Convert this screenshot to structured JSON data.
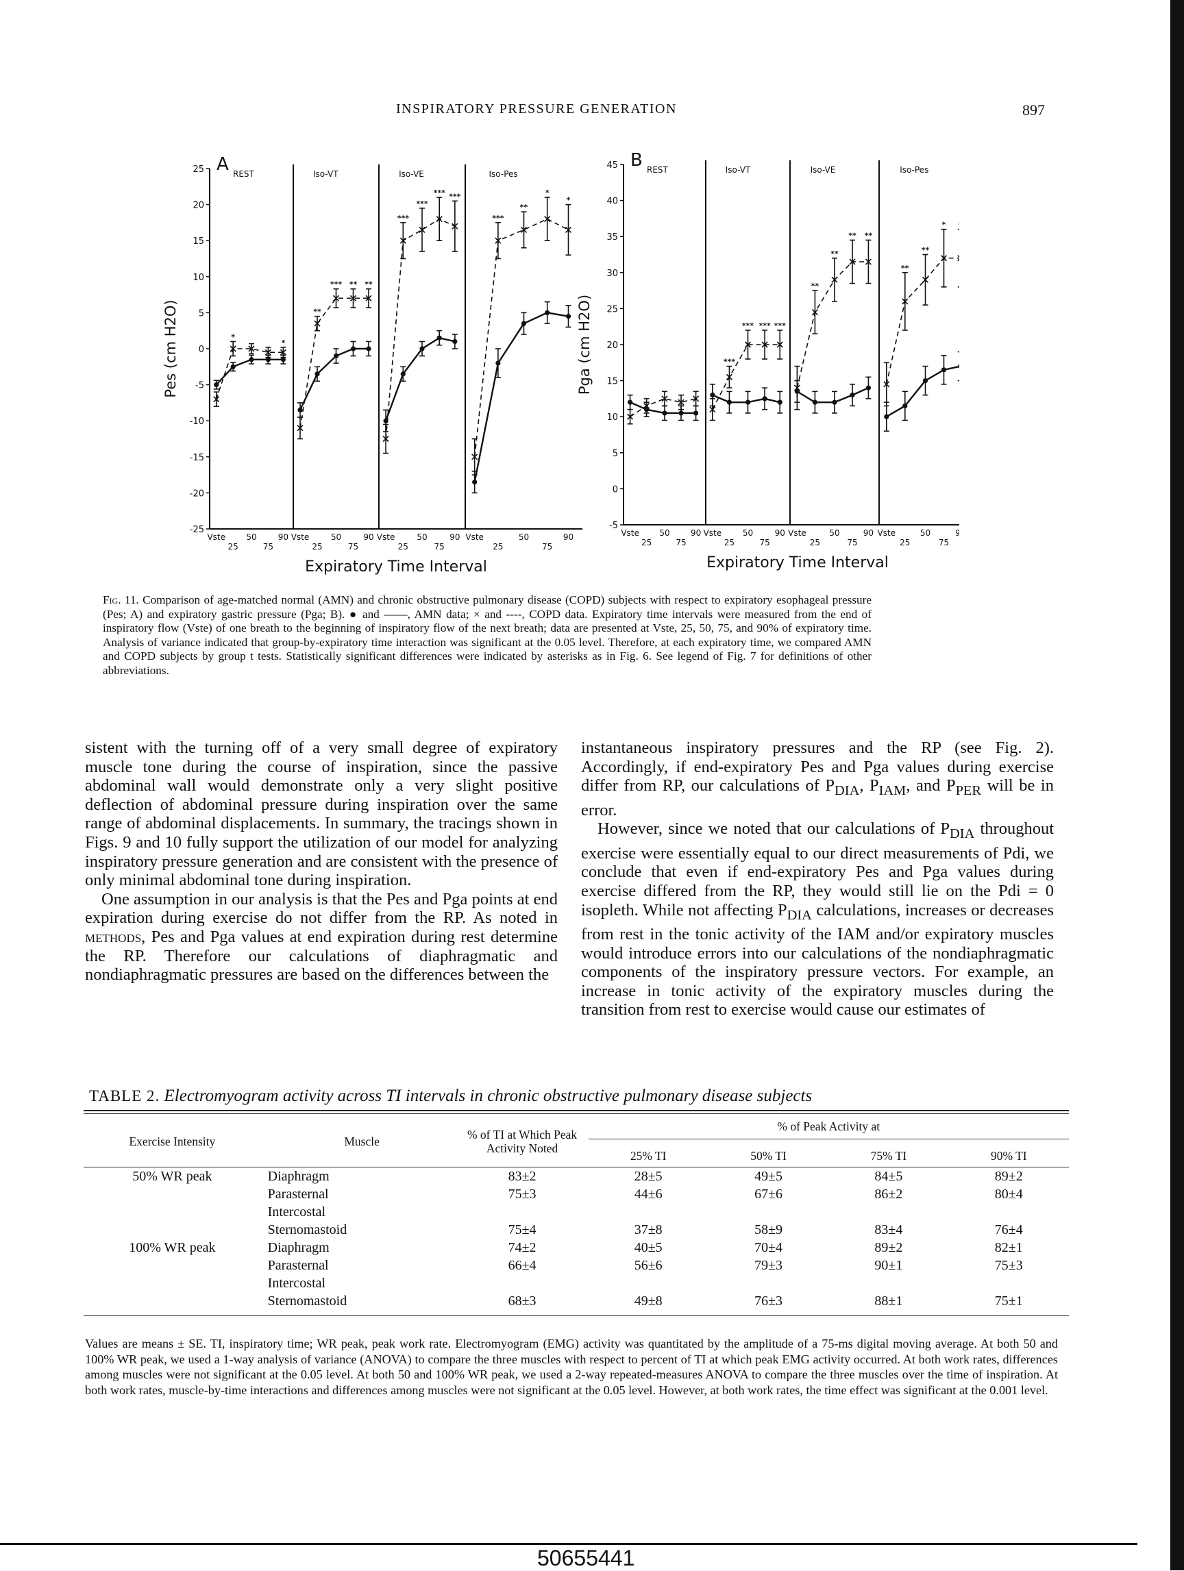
{
  "header": {
    "running_title": "INSPIRATORY PRESSURE GENERATION",
    "page_number": "897"
  },
  "figure": {
    "panels": [
      {
        "letter": "A",
        "ylabel": "Pes (cm H2O)",
        "yticks": [
          25,
          20,
          15,
          10,
          5,
          0,
          -5,
          -10,
          -15,
          -20,
          -25
        ],
        "ylim": [
          -25,
          25
        ],
        "xlabel": "Expiratory Time Interval",
        "conditions": [
          "REST",
          "Iso-VT",
          "Iso-VE",
          "Iso-Pes"
        ],
        "tick_top": [
          "Vste",
          "50",
          "90"
        ],
        "tick_bottom": [
          "25",
          "75"
        ]
      },
      {
        "letter": "B",
        "ylabel": "Pga (cm H2O)",
        "yticks": [
          45,
          40,
          35,
          30,
          25,
          20,
          15,
          10,
          5,
          0,
          -5
        ],
        "ylim": [
          -5,
          45
        ],
        "xlabel": "Expiratory Time Interval",
        "conditions": [
          "REST",
          "Iso-VT",
          "Iso-VE",
          "Iso-Pes"
        ],
        "tick_top": [
          "Vste",
          "50",
          "90"
        ],
        "tick_bottom": [
          "25",
          "75"
        ]
      }
    ]
  },
  "chart_data": [
    {
      "type": "line",
      "panel": "A",
      "ylabel": "Pes (cm H2O)",
      "xlabel": "Expiratory Time Interval",
      "ylim": [
        -25,
        25
      ],
      "groups": [
        "REST",
        "Iso-VT",
        "Iso-VE",
        "Iso-Pes"
      ],
      "x": [
        "Vste",
        "25",
        "50",
        "75",
        "90"
      ],
      "series": [
        {
          "name": "AMN",
          "style": "solid",
          "marker": "dot",
          "values": [
            [
              -5,
              -2.5,
              -1.5,
              -1.5,
              -1.5
            ],
            [
              -8.5,
              -3.5,
              -1,
              0,
              0
            ],
            [
              -10,
              -3.5,
              0,
              1.5,
              1
            ],
            [
              -18.5,
              -2,
              3.5,
              5,
              4.5
            ]
          ],
          "errors": [
            [
              0.6,
              0.6,
              0.6,
              0.6,
              0.6
            ],
            [
              1,
              1,
              1,
              1,
              1
            ],
            [
              1.5,
              1,
              1,
              1,
              1
            ],
            [
              1.5,
              2,
              1.5,
              1.5,
              1.5
            ]
          ]
        },
        {
          "name": "COPD",
          "style": "dashed",
          "marker": "x",
          "values": [
            [
              -7,
              0,
              0,
              -0.5,
              -0.5
            ],
            [
              -11,
              3.5,
              7,
              7,
              7
            ],
            [
              -12.5,
              15,
              16.5,
              18,
              17
            ],
            [
              -15,
              15,
              16.5,
              18,
              16.5
            ]
          ],
          "errors": [
            [
              1,
              1,
              0.7,
              0.7,
              0.7
            ],
            [
              1.5,
              1,
              1.3,
              1.3,
              1.3
            ],
            [
              2,
              2.5,
              3,
              3,
              3.5
            ],
            [
              2.5,
              2.5,
              2.5,
              3,
              3.5
            ]
          ]
        }
      ],
      "significance": [
        [
          "",
          "*",
          "",
          "",
          "*"
        ],
        [
          "",
          "**",
          "***",
          "**",
          "**"
        ],
        [
          "",
          "***",
          "***",
          "***",
          "***"
        ],
        [
          "",
          "***",
          "**",
          "*",
          "*"
        ]
      ]
    },
    {
      "type": "line",
      "panel": "B",
      "ylabel": "Pga (cm H2O)",
      "xlabel": "Expiratory Time Interval",
      "ylim": [
        -5,
        45
      ],
      "groups": [
        "REST",
        "Iso-VT",
        "Iso-VE",
        "Iso-Pes"
      ],
      "x": [
        "Vste",
        "25",
        "50",
        "75",
        "90"
      ],
      "series": [
        {
          "name": "AMN",
          "style": "solid",
          "marker": "dot",
          "values": [
            [
              12,
              11,
              10.5,
              10.5,
              10.5
            ],
            [
              13,
              12,
              12,
              12.5,
              12
            ],
            [
              13.5,
              12,
              12,
              13,
              14
            ],
            [
              10,
              11.5,
              15,
              16.5,
              17
            ]
          ],
          "errors": [
            [
              1,
              1,
              1,
              1,
              1
            ],
            [
              1.5,
              1.5,
              1.5,
              1.5,
              1.5
            ],
            [
              1.5,
              1.5,
              1.5,
              1.5,
              1.5
            ],
            [
              2,
              2,
              2,
              2,
              2
            ]
          ]
        },
        {
          "name": "COPD",
          "style": "dashed",
          "marker": "x",
          "values": [
            [
              10,
              11.5,
              12.5,
              12,
              12.5
            ],
            [
              11,
              15.5,
              20,
              20,
              20
            ],
            [
              14,
              24.5,
              29,
              31.5,
              31.5
            ],
            [
              14.5,
              26,
              29,
              32,
              32
            ]
          ],
          "errors": [
            [
              1,
              1,
              1,
              1,
              1
            ],
            [
              1.5,
              1.5,
              2,
              2,
              2
            ],
            [
              3,
              3,
              3,
              3,
              3
            ],
            [
              3,
              4,
              3.5,
              4,
              4
            ]
          ]
        }
      ],
      "significance": [
        [
          "",
          "",
          "",
          "",
          ""
        ],
        [
          "",
          "***",
          "***",
          "***",
          "***"
        ],
        [
          "",
          "**",
          "**",
          "**",
          "**"
        ],
        [
          "",
          "**",
          "**",
          "*",
          "*"
        ]
      ]
    }
  ],
  "caption": {
    "label": "Fig. 11.",
    "text": "Comparison of age-matched normal (AMN) and chronic obstructive pulmonary disease (COPD) subjects with respect to expiratory esophageal pressure (Pes; A) and expiratory gastric pressure (Pga; B). ● and ——, AMN data; × and ----, COPD data. Expiratory time intervals were measured from the end of inspiratory flow (Vste) of one breath to the beginning of inspiratory flow of the next breath; data are presented at Vste, 25, 50, 75, and 90% of expiratory time. Analysis of variance indicated that group-by-expiratory time interaction was significant at the 0.05 level. Therefore, at each expiratory time, we compared AMN and COPD subjects by group t tests. Statistically significant differences were indicated by asterisks as in Fig. 6. See legend of Fig. 7 for definitions of other abbreviations."
  },
  "body": {
    "left_p1": "sistent with the turning off of a very small degree of expiratory muscle tone during the course of inspiration, since the passive abdominal wall would demonstrate only a very slight positive deflection of abdominal pressure during inspiration over the same range of abdominal displacements. In summary, the tracings shown in Figs. 9 and 10 fully support the utilization of our model for analyzing inspiratory pressure generation and are consistent with the presence of only minimal abdominal tone during inspiration.",
    "left_p2a": "One assumption in our analysis is that the Pes and Pga points at end expiration during exercise do not differ from the RP. As noted in ",
    "left_p2_methods": "methods",
    "left_p2b": ", Pes and Pga values at end expiration during rest determine the RP. Therefore our calculations of diaphragmatic and nondiaphragmatic pressures are based on the differences between the",
    "right_p1a": "instantaneous inspiratory pressures and the RP (see Fig. 2). Accordingly, if end-expiratory Pes and Pga values during exercise differ from RP, our calculations of P",
    "sub_dia": "DIA",
    "right_p1b": ", P",
    "sub_iam": "IAM",
    "right_p1c": ", and P",
    "sub_per": "PER",
    "right_p1d": " will be in error.",
    "right_p2a": "However, since we noted that our calculations of P",
    "right_p2b": " throughout exercise were essentially equal to our direct measurements of Pdi, we conclude that even if end-expiratory Pes and Pga values during exercise differed from the RP, they would still lie on the Pdi = 0 isopleth. While not affecting P",
    "right_p2c": " calculations, increases or decreases from rest in the tonic activity of the IAM and/or expiratory muscles would introduce errors into our calculations of the nondiaphragmatic components of the inspiratory pressure vectors. For example, an increase in tonic activity of the expiratory muscles during the transition from rest to exercise would cause our estimates of"
  },
  "table": {
    "label": "TABLE 2.",
    "title": "Electromyogram activity across TI intervals in chronic obstructive pulmonary disease subjects",
    "headers": {
      "intensity": "Exercise Intensity",
      "muscle": "Muscle",
      "ti_noted": "% of TI at Which Peak Activity Noted",
      "peak_group": "% of Peak Activity at",
      "cols": [
        "25% TI",
        "50% TI",
        "75% TI",
        "90% TI"
      ]
    },
    "rows": [
      {
        "intensity": "50% WR peak",
        "muscle": "Diaphragm",
        "ti": "83±2",
        "v25": "28±5",
        "v50": "49±5",
        "v75": "84±5",
        "v90": "89±2"
      },
      {
        "intensity": "",
        "muscle": "Parasternal",
        "ti": "75±3",
        "v25": "44±6",
        "v50": "67±6",
        "v75": "86±2",
        "v90": "80±4"
      },
      {
        "intensity": "",
        "muscle": "Intercostal",
        "ti": "",
        "v25": "",
        "v50": "",
        "v75": "",
        "v90": ""
      },
      {
        "intensity": "",
        "muscle": "Sternomastoid",
        "ti": "75±4",
        "v25": "37±8",
        "v50": "58±9",
        "v75": "83±4",
        "v90": "76±4"
      },
      {
        "intensity": "100% WR peak",
        "muscle": "Diaphragm",
        "ti": "74±2",
        "v25": "40±5",
        "v50": "70±4",
        "v75": "89±2",
        "v90": "82±1"
      },
      {
        "intensity": "",
        "muscle": "Parasternal",
        "ti": "66±4",
        "v25": "56±6",
        "v50": "79±3",
        "v75": "90±1",
        "v90": "75±3"
      },
      {
        "intensity": "",
        "muscle": "Intercostal",
        "ti": "",
        "v25": "",
        "v50": "",
        "v75": "",
        "v90": ""
      },
      {
        "intensity": "",
        "muscle": "Sternomastoid",
        "ti": "68±3",
        "v25": "49±8",
        "v50": "76±3",
        "v75": "88±1",
        "v90": "75±1"
      }
    ],
    "footnote": "Values are means ± SE. TI, inspiratory time; WR peak, peak work rate. Electromyogram (EMG) activity was quantitated by the amplitude of a 75-ms digital moving average. At both 50 and 100% WR peak, we used a 1-way analysis of variance (ANOVA) to compare the three muscles with respect to percent of TI at which peak EMG activity occurred. At both work rates, differences among muscles were not significant at the 0.05 level. At both 50 and 100% WR peak, we used a 2-way repeated-measures ANOVA to compare the three muscles over the time of inspiration. At both work rates, muscle-by-time interactions and differences among muscles were not significant at the 0.05 level. However, at both work rates, the time effect was significant at the 0.001 level."
  },
  "footer": {
    "document_id": "50655441"
  }
}
